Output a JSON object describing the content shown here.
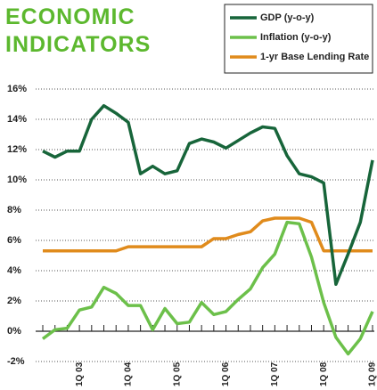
{
  "chart_data": {
    "type": "line",
    "title": "ECONOMIC INDICATORS",
    "categories": [
      null,
      null,
      null,
      "1Q 03",
      null,
      null,
      null,
      "1Q 04",
      null,
      null,
      null,
      "1Q 05",
      null,
      null,
      null,
      "1Q 06",
      null,
      null,
      null,
      "1Q 07",
      null,
      null,
      null,
      "1Q 08",
      null,
      null,
      null,
      "1Q 09"
    ],
    "series": [
      {
        "name": "GDP (y-o-y)",
        "color": "#17653a",
        "values": [
          11.9,
          11.5,
          11.9,
          11.9,
          14.0,
          14.9,
          14.4,
          13.8,
          10.4,
          10.9,
          10.4,
          10.6,
          12.4,
          12.7,
          12.5,
          12.1,
          12.6,
          13.1,
          13.5,
          13.4,
          11.6,
          10.4,
          10.2,
          9.8,
          3.1,
          5.1,
          7.2,
          11.3
        ]
      },
      {
        "name": "Inflation (y-o-y)",
        "color": "#6cc04a",
        "values": [
          -0.5,
          0.1,
          0.2,
          1.4,
          1.6,
          2.9,
          2.5,
          1.7,
          1.7,
          0.1,
          1.5,
          0.5,
          0.6,
          1.9,
          1.1,
          1.3,
          2.1,
          2.8,
          4.2,
          5.1,
          7.2,
          7.1,
          4.9,
          1.9,
          -0.4,
          -1.5,
          -0.5,
          1.3
        ]
      },
      {
        "name": "1-yr Base Lending Rate",
        "color": "#e08b1c",
        "values": [
          5.31,
          5.31,
          5.31,
          5.31,
          5.31,
          5.31,
          5.31,
          5.58,
          5.58,
          5.58,
          5.58,
          5.58,
          5.58,
          5.58,
          6.12,
          6.12,
          6.39,
          6.57,
          7.29,
          7.47,
          7.47,
          7.47,
          7.2,
          5.31,
          5.31,
          5.31,
          5.31,
          5.31
        ]
      }
    ],
    "ylim": [
      -2,
      16
    ],
    "yticks": [
      {
        "value": -2,
        "label": "-2%"
      },
      {
        "value": 0,
        "label": "0%"
      },
      {
        "value": 2,
        "label": "2%"
      },
      {
        "value": 4,
        "label": "4%"
      },
      {
        "value": 6,
        "label": "6%"
      },
      {
        "value": 8,
        "label": "8%"
      },
      {
        "value": 10,
        "label": "10%"
      },
      {
        "value": 12,
        "label": "12%"
      },
      {
        "value": 14,
        "label": "14%"
      },
      {
        "value": 16,
        "label": "16%"
      }
    ],
    "grid": true
  }
}
